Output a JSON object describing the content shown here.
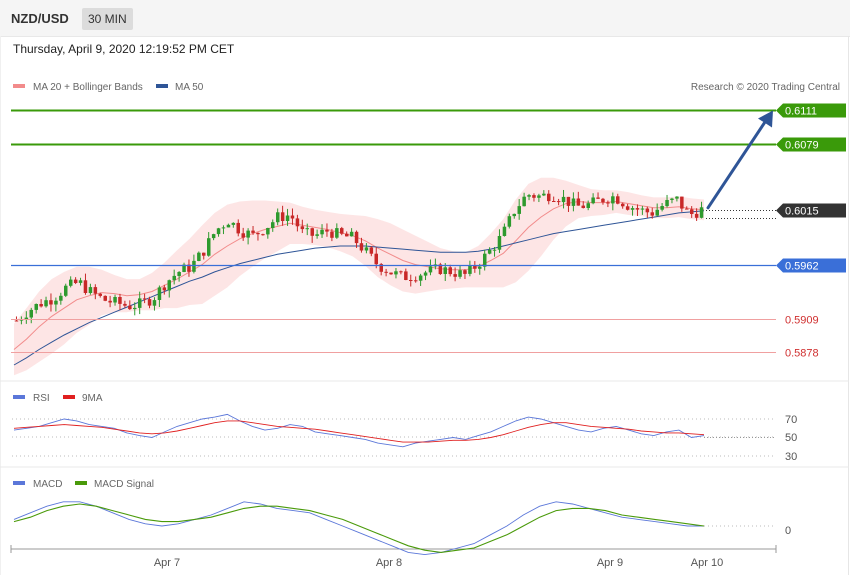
{
  "header": {
    "symbol": "NZD/USD",
    "timeframe": "30 MIN",
    "datetime": "Thursday, April 9, 2020 12:19:52 PM CET"
  },
  "legend": {
    "bb_label": "MA 20 + Bollinger Bands",
    "ma50_label": "MA 50",
    "credit": "Research © 2020 Trading Central"
  },
  "colors": {
    "bb": "#f28b8b",
    "ma50": "#2f5597",
    "green": "#3a9a0a",
    "blue": "#3a6fd8",
    "red": "#d03030",
    "rsi": "#5b77d9",
    "rsi_ma": "#e02020",
    "macd": "#5b77d9",
    "macd_signal": "#4a9a0a",
    "candle_up": "#2e9a2e",
    "candle_down": "#c82828"
  },
  "chart_data": [
    {
      "type": "candlestick",
      "title": "NZD/USD",
      "x_ticks": [
        "Apr 7",
        "Apr 8",
        "Apr 9",
        "Apr 10"
      ],
      "ylim": [
        0.5865,
        0.6125
      ],
      "levels": [
        {
          "value": "0.6111",
          "style": "green"
        },
        {
          "value": "0.6079",
          "style": "green"
        },
        {
          "value": "0.6015",
          "style": "current"
        },
        {
          "value": "0.5962",
          "style": "blue"
        },
        {
          "value": "0.5909",
          "style": "red"
        },
        {
          "value": "0.5878",
          "style": "red"
        }
      ],
      "close_path": [
        0.5908,
        0.5918,
        0.5925,
        0.593,
        0.594,
        0.5945,
        0.5935,
        0.5928,
        0.5925,
        0.5922,
        0.5924,
        0.593,
        0.5945,
        0.5955,
        0.596,
        0.5975,
        0.5995,
        0.6005,
        0.5995,
        0.599,
        0.5998,
        0.6008,
        0.601,
        0.5992,
        0.599,
        0.5995,
        0.599,
        0.5988,
        0.5975,
        0.5962,
        0.5955,
        0.595,
        0.5952,
        0.5955,
        0.5958,
        0.5955,
        0.5952,
        0.5962,
        0.5975,
        0.599,
        0.6015,
        0.603,
        0.6028,
        0.603,
        0.6025,
        0.6018,
        0.602,
        0.6025,
        0.6028,
        0.602,
        0.6015,
        0.6012,
        0.602,
        0.6025,
        0.601,
        0.6015
      ],
      "ma20": [
        0.588,
        0.589,
        0.5902,
        0.5912,
        0.592,
        0.5928,
        0.5932,
        0.5935,
        0.5934,
        0.5932,
        0.5933,
        0.5936,
        0.5942,
        0.5948,
        0.5955,
        0.5962,
        0.5972,
        0.598,
        0.5987,
        0.5992,
        0.5996,
        0.5999,
        0.6002,
        0.6,
        0.5998,
        0.5996,
        0.5993,
        0.599,
        0.5985,
        0.5978,
        0.5972,
        0.5966,
        0.5962,
        0.596,
        0.5958,
        0.5957,
        0.5957,
        0.596,
        0.5966,
        0.5973,
        0.5985,
        0.5998,
        0.6008,
        0.6016,
        0.6021,
        0.6023,
        0.6022,
        0.6022,
        0.6023,
        0.6021,
        0.6019,
        0.6017,
        0.6017,
        0.6018,
        0.6016,
        0.6015
      ],
      "bb_width": [
        0.0025,
        0.003,
        0.0034,
        0.0036,
        0.0035,
        0.0032,
        0.0028,
        0.0022,
        0.0018,
        0.0016,
        0.0015,
        0.0018,
        0.0022,
        0.0028,
        0.0032,
        0.0038,
        0.004,
        0.004,
        0.0036,
        0.0032,
        0.0028,
        0.0024,
        0.002,
        0.0018,
        0.0017,
        0.0017,
        0.0018,
        0.002,
        0.0024,
        0.0028,
        0.003,
        0.003,
        0.0028,
        0.0024,
        0.002,
        0.0018,
        0.0017,
        0.002,
        0.0026,
        0.0033,
        0.004,
        0.0042,
        0.0038,
        0.003,
        0.0022,
        0.0016,
        0.0013,
        0.0012,
        0.0011,
        0.0011,
        0.001,
        0.001,
        0.001,
        0.001,
        0.001,
        0.001
      ],
      "ma50": [
        0.5865,
        0.5872,
        0.588,
        0.5887,
        0.5894,
        0.59,
        0.5906,
        0.5911,
        0.5916,
        0.5921,
        0.5926,
        0.5931,
        0.5936,
        0.5941,
        0.5946,
        0.595,
        0.5955,
        0.5959,
        0.5963,
        0.5966,
        0.5969,
        0.5972,
        0.5974,
        0.5976,
        0.5978,
        0.5979,
        0.598,
        0.598,
        0.598,
        0.5979,
        0.5978,
        0.5977,
        0.5976,
        0.5975,
        0.5974,
        0.5974,
        0.5974,
        0.5975,
        0.5977,
        0.598,
        0.5983,
        0.5986,
        0.5989,
        0.5992,
        0.5994,
        0.5996,
        0.5998,
        0.6,
        0.6002,
        0.6004,
        0.6006,
        0.6008,
        0.601,
        0.6012,
        0.6013,
        0.6014
      ],
      "forecast_target": "0.6111"
    },
    {
      "type": "line",
      "series": [
        {
          "name": "RSI"
        },
        {
          "name": "9MA"
        }
      ],
      "y_ticks": [
        "70",
        "50",
        "30"
      ],
      "ylim": [
        20,
        80
      ],
      "rsi": [
        58,
        60,
        62,
        66,
        70,
        68,
        64,
        62,
        60,
        55,
        52,
        50,
        56,
        62,
        66,
        70,
        72,
        75,
        68,
        62,
        58,
        60,
        64,
        62,
        56,
        54,
        52,
        50,
        48,
        44,
        42,
        40,
        44,
        46,
        48,
        50,
        48,
        52,
        56,
        62,
        68,
        72,
        70,
        66,
        62,
        58,
        56,
        60,
        62,
        58,
        54,
        52,
        56,
        58,
        50,
        52
      ],
      "ma9": [
        60,
        61,
        62,
        63,
        64,
        63,
        62,
        61,
        59,
        57,
        55,
        54,
        55,
        57,
        60,
        63,
        66,
        68,
        68,
        66,
        64,
        62,
        61,
        60,
        59,
        57,
        55,
        53,
        51,
        49,
        47,
        45,
        45,
        45,
        46,
        47,
        47,
        48,
        50,
        53,
        57,
        61,
        64,
        66,
        66,
        64,
        62,
        61,
        60,
        59,
        57,
        56,
        55,
        55,
        54,
        53
      ]
    },
    {
      "type": "line",
      "series": [
        {
          "name": "MACD"
        },
        {
          "name": "MACD Signal"
        }
      ],
      "y_ticks": [
        "0"
      ],
      "macd": [
        0.3,
        0.6,
        0.9,
        1.1,
        1.1,
        0.9,
        0.6,
        0.3,
        0.1,
        0.0,
        0.1,
        0.3,
        0.5,
        0.8,
        1.1,
        1.0,
        0.8,
        0.7,
        0.6,
        0.3,
        0.0,
        -0.3,
        -0.6,
        -0.9,
        -1.2,
        -1.3,
        -1.2,
        -1.0,
        -0.8,
        -0.4,
        0.0,
        0.5,
        0.9,
        1.1,
        1.0,
        0.8,
        0.6,
        0.4,
        0.3,
        0.2,
        0.1,
        0.0,
        0.0
      ],
      "signal": [
        0.2,
        0.4,
        0.7,
        0.9,
        1.0,
        0.9,
        0.7,
        0.5,
        0.3,
        0.2,
        0.2,
        0.3,
        0.4,
        0.6,
        0.8,
        0.9,
        0.9,
        0.8,
        0.7,
        0.5,
        0.3,
        0.0,
        -0.3,
        -0.6,
        -0.9,
        -1.1,
        -1.2,
        -1.1,
        -1.0,
        -0.7,
        -0.4,
        0.0,
        0.4,
        0.7,
        0.8,
        0.8,
        0.7,
        0.5,
        0.4,
        0.3,
        0.2,
        0.1,
        0.0
      ]
    }
  ]
}
